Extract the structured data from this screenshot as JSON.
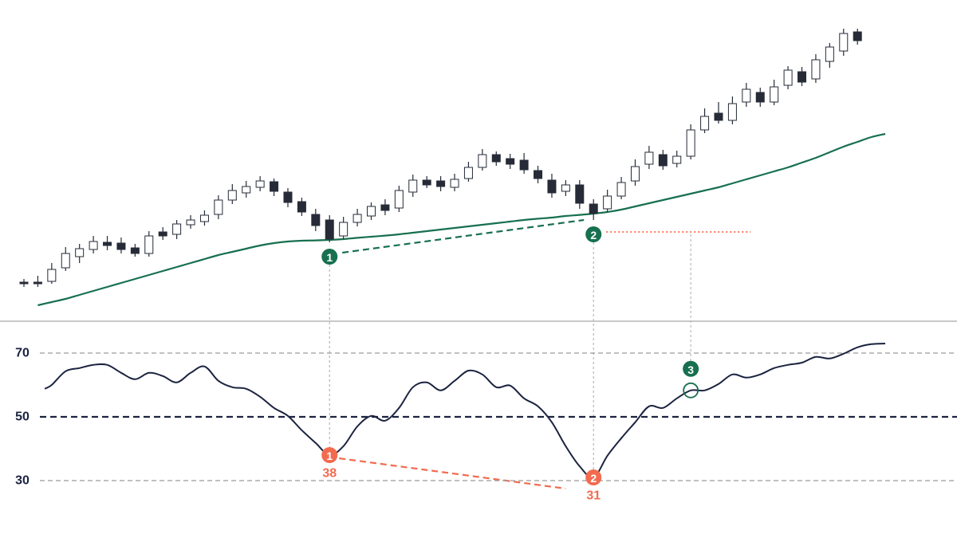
{
  "chart_data": [
    {
      "type": "candlestick",
      "open": [
        11.5,
        11.5,
        11.75,
        16,
        19.5,
        21.75,
        24,
        23.75,
        22.25,
        20.5,
        27.25,
        26.5,
        29.5,
        30.5,
        32.75,
        37.25,
        39.5,
        41.25,
        43,
        39.75,
        36.75,
        32.75,
        31,
        26,
        30.25,
        32.25,
        35.75,
        34.75,
        39.75,
        43.5,
        43.25,
        41.25,
        44,
        47.5,
        51.5,
        50.25,
        49.75,
        46.5,
        43.5,
        40,
        42,
        36,
        34.5,
        38.5,
        43.25,
        48.5,
        51.5,
        48.75,
        51,
        59.25,
        64.5,
        62.25,
        68,
        71,
        68,
        73.25,
        77.5,
        75.25,
        80.75,
        84,
        90
      ],
      "high": [
        12.5,
        13.5,
        17.5,
        22.5,
        23.5,
        26,
        26,
        25.5,
        23.5,
        27.5,
        28.75,
        31,
        32.5,
        34,
        38.75,
        42.25,
        43.25,
        44.75,
        44,
        41,
        38,
        34.5,
        32.5,
        32,
        34.5,
        36.5,
        37.5,
        41.75,
        45.25,
        44.75,
        44.75,
        45.5,
        49.25,
        53.25,
        52.5,
        51.75,
        52,
        48,
        45.5,
        43.5,
        43.5,
        37.5,
        40.5,
        44.5,
        50,
        54.25,
        53,
        52.75,
        61,
        66,
        68,
        69.75,
        74,
        72.5,
        75,
        79.25,
        79,
        83,
        86.5,
        91,
        91
      ],
      "low": [
        10,
        10,
        11,
        15,
        17.5,
        20.5,
        21.5,
        20.5,
        19.5,
        19.5,
        24.75,
        25,
        28.25,
        29.25,
        31.25,
        36,
        38,
        40,
        38.5,
        35,
        32.25,
        27.5,
        24,
        25,
        29,
        31,
        32.5,
        33.5,
        38.25,
        41,
        40,
        40,
        43,
        46.5,
        48,
        47,
        45.5,
        42.5,
        38,
        38.5,
        34.5,
        31,
        33.5,
        37.5,
        41.75,
        47,
        46.75,
        47.5,
        50,
        58.25,
        61.25,
        61,
        66.5,
        66.5,
        67,
        72,
        73,
        74,
        78.75,
        82.5,
        86
      ],
      "close": [
        11,
        11,
        15.5,
        20.5,
        22,
        24.25,
        23,
        21.75,
        20.5,
        26,
        26,
        29.75,
        31,
        32.5,
        37.25,
        40.25,
        41.5,
        43.25,
        40,
        36.5,
        33.5,
        29.25,
        25,
        30.25,
        32.75,
        35.25,
        34,
        40.25,
        43.5,
        42,
        41.5,
        43.75,
        47.5,
        51.5,
        49.25,
        48.5,
        46.75,
        44,
        39.5,
        42,
        36.25,
        33,
        38.5,
        42.75,
        47.75,
        52.25,
        48,
        51,
        59.25,
        63.5,
        62.25,
        67.5,
        72,
        68,
        72.75,
        78,
        74.25,
        81.25,
        85.25,
        89.5,
        87.25
      ],
      "up_color": "#ffffff",
      "down_color": "#262b37",
      "ylim": [
        0,
        100
      ],
      "series": [
        {
          "color": "#17704f",
          "x": [
            1,
            2,
            3,
            4,
            5,
            6,
            7,
            8,
            9,
            10,
            11,
            12,
            13,
            14,
            15,
            16,
            17,
            18,
            19,
            20,
            21,
            22,
            23,
            24,
            25,
            26,
            27,
            28,
            29,
            30,
            31,
            32,
            33,
            34,
            35,
            36,
            37,
            38,
            39,
            40,
            41,
            42,
            43,
            44,
            45,
            46,
            47,
            48,
            49,
            50,
            51,
            52,
            53,
            54,
            55,
            56,
            57,
            58,
            59,
            60,
            61,
            62
          ],
          "values": [
            4.25,
            5.25,
            6.25,
            7.5,
            8.75,
            10,
            11.25,
            12.5,
            13.75,
            15,
            16.25,
            17.5,
            18.75,
            20,
            21,
            22,
            23,
            23.75,
            24.25,
            24.5,
            24.6,
            24.75,
            25,
            25.4,
            25.75,
            26.1,
            26.5,
            27,
            27.5,
            28,
            28.5,
            29,
            29.5,
            30,
            30.5,
            31,
            31.4,
            31.75,
            32.25,
            32.6,
            33,
            33.5,
            34.25,
            35.25,
            36.25,
            37.25,
            38.25,
            39.25,
            40.25,
            41.25,
            42.5,
            43.75,
            45,
            46.25,
            47.5,
            49,
            50.5,
            52.25,
            54,
            55.5,
            57,
            58
          ]
        }
      ],
      "markers": [
        {
          "label": "1",
          "candle": 22,
          "color": "#17704f"
        },
        {
          "label": "2",
          "candle": 41,
          "color": "#17704f"
        }
      ]
    },
    {
      "type": "line",
      "ylim": [
        12,
        80
      ],
      "yticks": [
        70,
        50,
        30
      ],
      "series": [
        {
          "color": "#1b2340",
          "x": [
            1.5,
            2,
            3,
            4,
            5,
            6,
            7,
            8,
            9,
            10,
            11,
            12,
            13,
            14,
            15,
            16,
            17,
            18,
            19,
            20,
            21,
            22,
            23,
            24,
            25,
            26,
            27,
            28,
            29,
            30,
            31,
            32,
            33,
            34,
            35,
            36,
            37,
            38,
            39,
            40,
            41,
            42,
            43,
            44,
            45,
            46,
            47,
            48,
            49,
            50,
            51,
            52,
            53,
            54,
            55,
            56,
            57,
            58,
            59,
            60,
            61,
            62
          ],
          "values": [
            58.8,
            60,
            64.3,
            65.3,
            66.3,
            66.3,
            63.8,
            61.8,
            63.8,
            62.8,
            60.8,
            63.8,
            65.8,
            61.3,
            59.3,
            58.8,
            56.3,
            52.8,
            50.3,
            45.8,
            41.8,
            38,
            40.8,
            47,
            50.3,
            48.8,
            52.8,
            59.3,
            60.8,
            58.3,
            61.3,
            64.5,
            63.3,
            59.3,
            59.8,
            55.8,
            53.3,
            48.3,
            40.8,
            34.5,
            31,
            37.8,
            43.3,
            48.3,
            53.3,
            52.8,
            55.8,
            58.3,
            58.3,
            60.3,
            63.3,
            62.3,
            63.3,
            65.3,
            66.3,
            67,
            68.8,
            68.3,
            69.8,
            71.8,
            72.8,
            73
          ]
        }
      ],
      "markers": [
        {
          "label": "1",
          "point": 21,
          "color": "#f26b4f"
        },
        {
          "label": "2",
          "point": 40,
          "color": "#f26b4f"
        },
        {
          "label": "3",
          "point": 47,
          "color": "#17704f"
        }
      ]
    }
  ]
}
